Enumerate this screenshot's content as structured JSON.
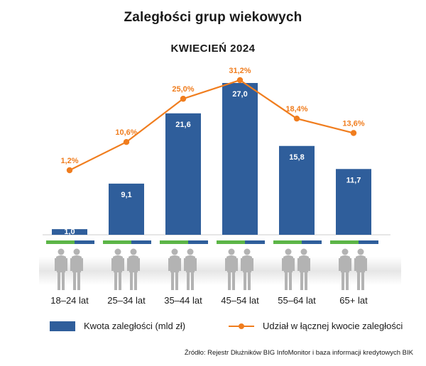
{
  "title": "Zaległości grup wiekowych",
  "subtitle": "KWIECIEŃ 2024",
  "chart_data": {
    "type": "bar",
    "categories": [
      "18–24 lat",
      "25–34 lat",
      "35–44 lat",
      "45–54 lat",
      "55–64 lat",
      "65+ lat"
    ],
    "series": [
      {
        "name": "Kwota zaległości (mld zł)",
        "type": "bar",
        "values": [
          1.0,
          9.1,
          21.6,
          27.0,
          15.8,
          11.7
        ],
        "labels": [
          "1,0",
          "9,1",
          "21,6",
          "27,0",
          "15,8",
          "11,7"
        ],
        "color": "#2f5e9b"
      },
      {
        "name": "Udział w łącznej kwocie zaległości",
        "type": "line",
        "values": [
          1.2,
          10.6,
          25.0,
          31.2,
          18.4,
          13.6
        ],
        "labels": [
          "1,2%",
          "10,6%",
          "25,0%",
          "31,2%",
          "18,4%",
          "13,6%"
        ],
        "color": "#f07d1e"
      }
    ],
    "legend_placement": "bottom",
    "grid": false
  },
  "legend": {
    "bar_label": "Kwota zaległości (mld zł)",
    "line_label": "Udział w łącznej kwocie zaległości"
  },
  "source": "Źródło: Rejestr Dłużników BIG InfoMonitor i baza informacji kredytowych BIK",
  "colors": {
    "bar": "#2f5e9b",
    "line": "#f07d1e",
    "stripe_green": "#5cb547",
    "stripe_blue": "#2f5e9b",
    "figure": "#b3b3b3"
  }
}
